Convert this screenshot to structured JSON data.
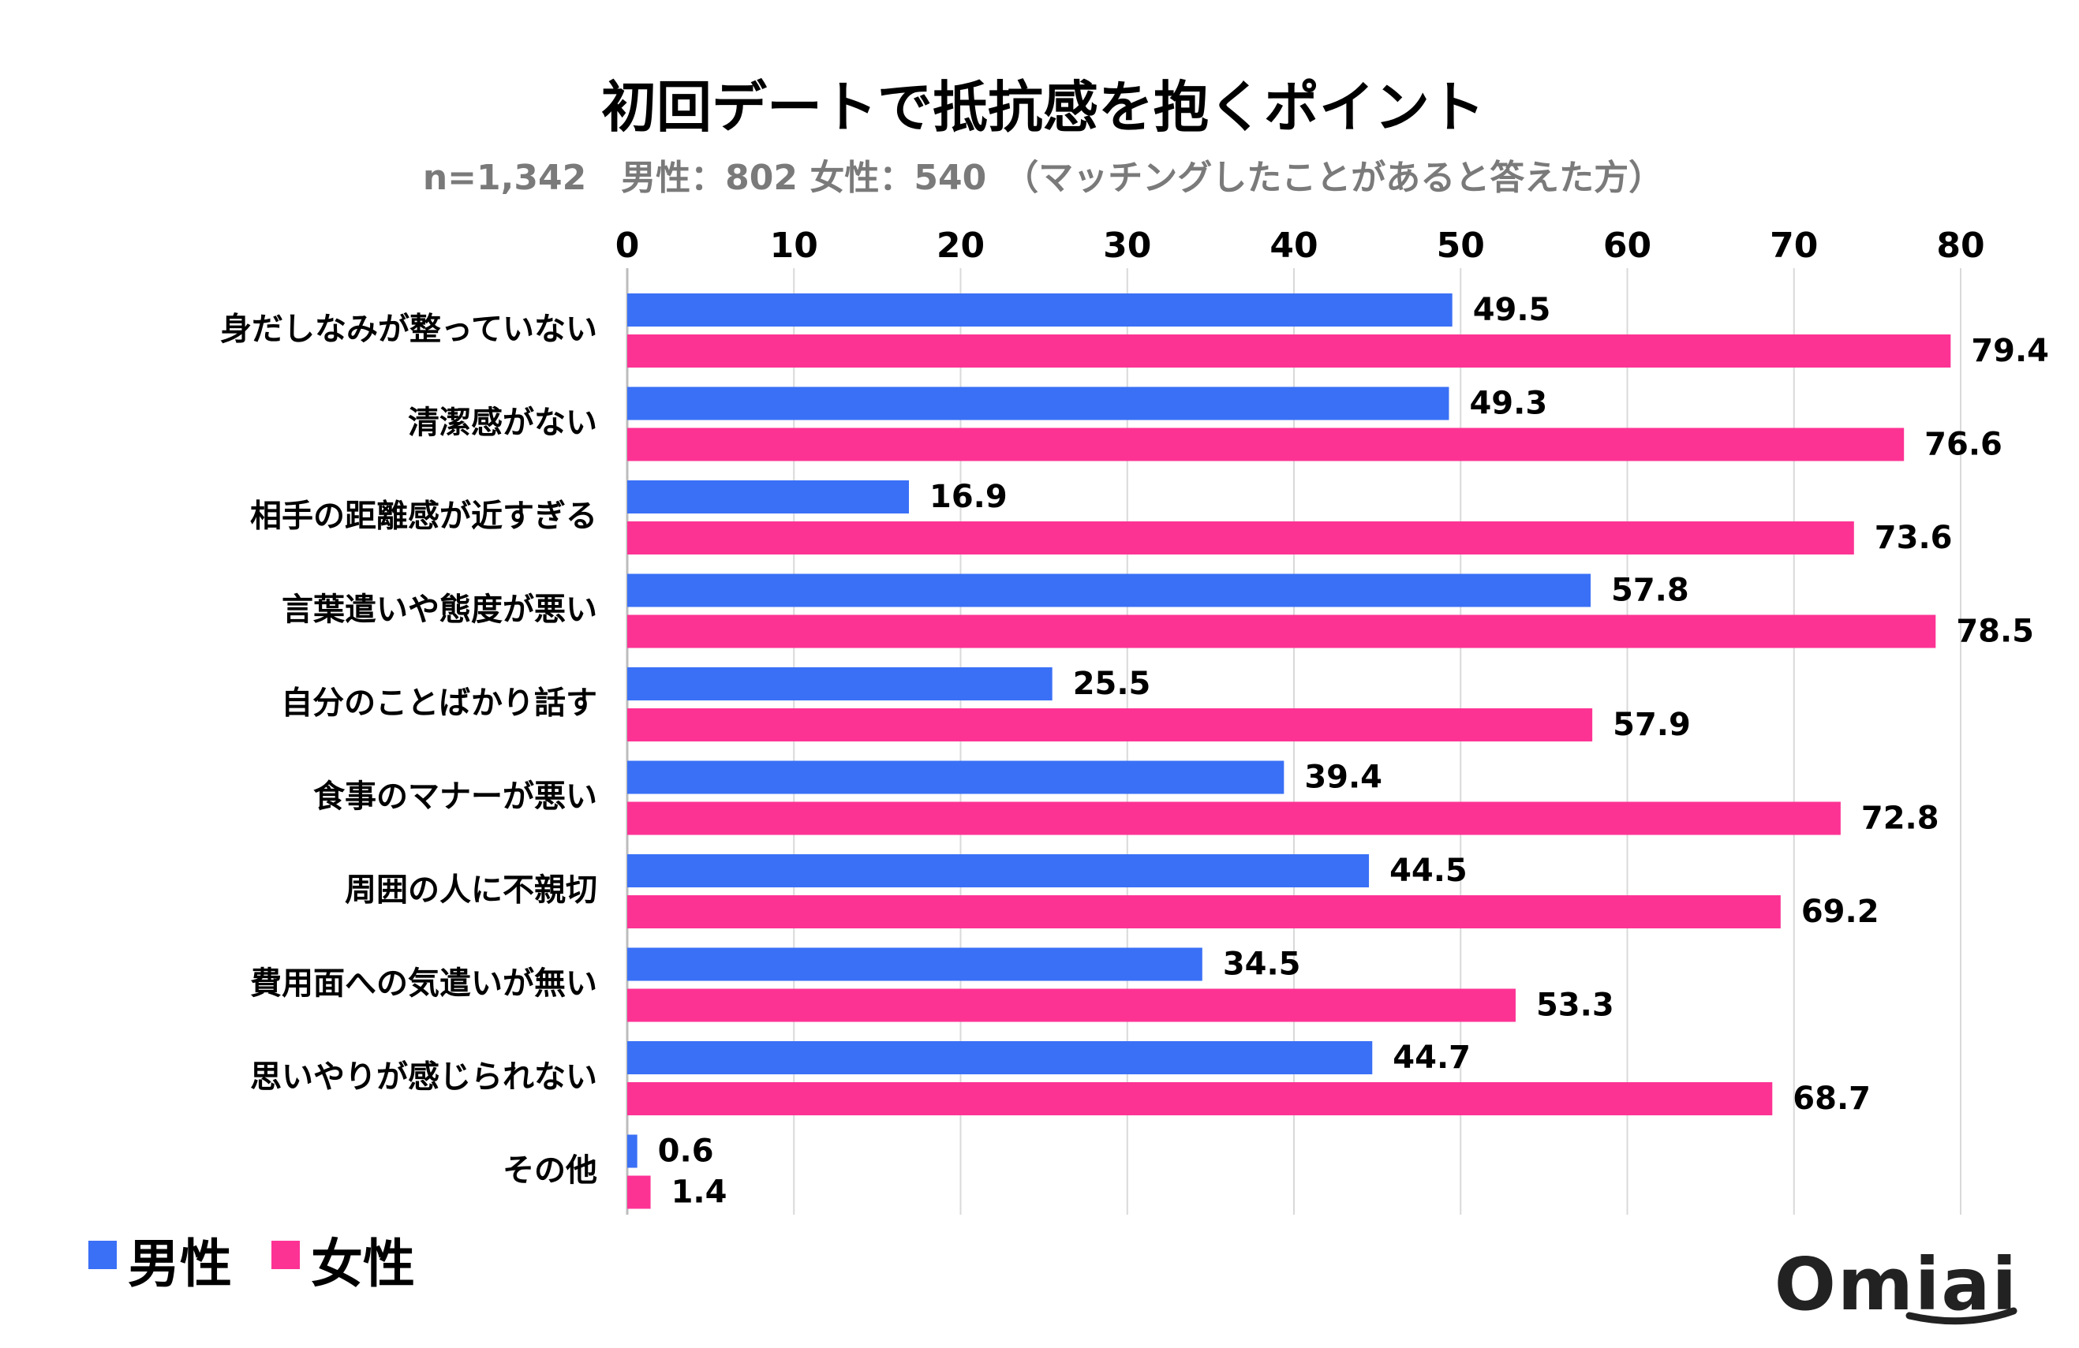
{
  "chart_data": {
    "type": "bar",
    "orientation": "horizontal",
    "title": "初回デートで抵抗感を抱くポイント",
    "subtitle": "n=1,342　男性：802  女性：540　（マッチングしたことがあると答えた方）",
    "categories": [
      "身だしなみが整っていない",
      "清潔感がない",
      "相手の距離感が近すぎる",
      "言葉遣いや態度が悪い",
      "自分のことばかり話す",
      "食事のマナーが悪い",
      "周囲の人に不親切",
      "費用面への気遣いが無い",
      "思いやりが感じられない",
      "その他"
    ],
    "series": [
      {
        "name": "男性",
        "color": "#3a70f6",
        "values": [
          49.5,
          49.3,
          16.9,
          57.8,
          25.5,
          39.4,
          44.5,
          34.5,
          44.7,
          0.6
        ]
      },
      {
        "name": "女性",
        "color": "#fd3394",
        "values": [
          79.4,
          76.6,
          73.6,
          78.5,
          57.9,
          72.8,
          69.2,
          53.3,
          68.7,
          1.4
        ]
      }
    ],
    "xlim": [
      0,
      80
    ],
    "xticks": [
      0,
      10,
      20,
      30,
      40,
      50,
      60,
      70,
      80
    ],
    "xlabel": "",
    "ylabel": "",
    "grid": true,
    "legend_position": "bottom-left"
  },
  "brand": {
    "logo_text": "Omiai"
  }
}
